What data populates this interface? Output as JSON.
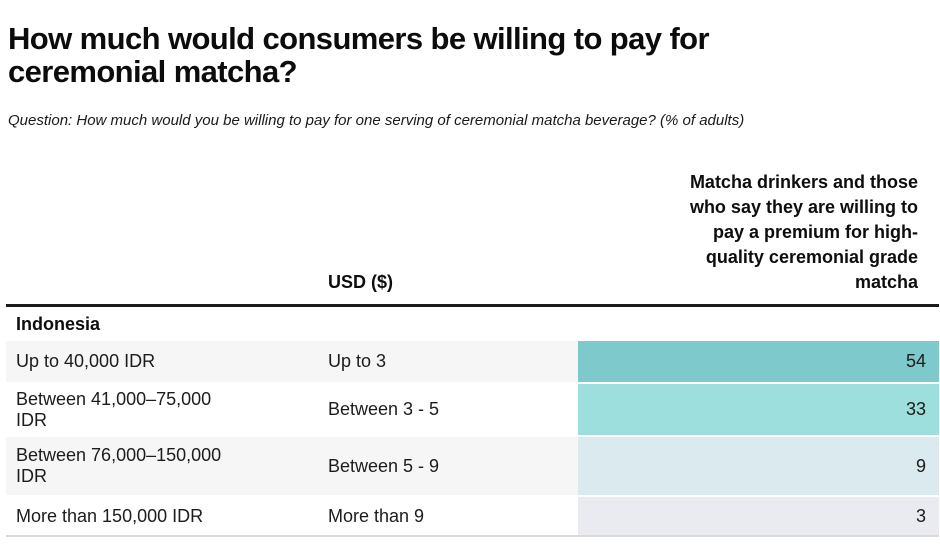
{
  "chart_data": {
    "type": "table",
    "title": "How much would consumers be willing to pay for ceremonial matcha?",
    "question": "Question: How much would you be willing to pay for one serving of ceremonial matcha beverage? (% of adults)",
    "group": "Indonesia",
    "value_unit": "% of adults",
    "heatmap": true,
    "columns": [
      "",
      "USD ($)",
      "Matcha drinkers and those who say they are willing to pay a premium for high-quality ceremonial grade matcha"
    ],
    "rows": [
      {
        "idr": "Up to 40,000 IDR",
        "usd": "Up to 3",
        "value": 54
      },
      {
        "idr": "Between 41,000–75,000 IDR",
        "usd": "Between 3 - 5",
        "value": 33
      },
      {
        "idr": "Between 76,000–150,000 IDR",
        "usd": "Between 5 - 9",
        "value": 9
      },
      {
        "idr": "More than 150,000 IDR",
        "usd": "More than 9",
        "value": 3
      }
    ]
  },
  "display": {
    "cell_colors": [
      "#7ec9cc",
      "#9cdfdc",
      "#dbeaee",
      "#e9ebf1"
    ],
    "row_backgrounds": [
      "#f6f6f7",
      "#ffffff",
      "#f6f6f7",
      "#ffffff"
    ],
    "header_rule_color": "#1a1a1a",
    "bottom_rule_color": "#d9d9d9"
  }
}
